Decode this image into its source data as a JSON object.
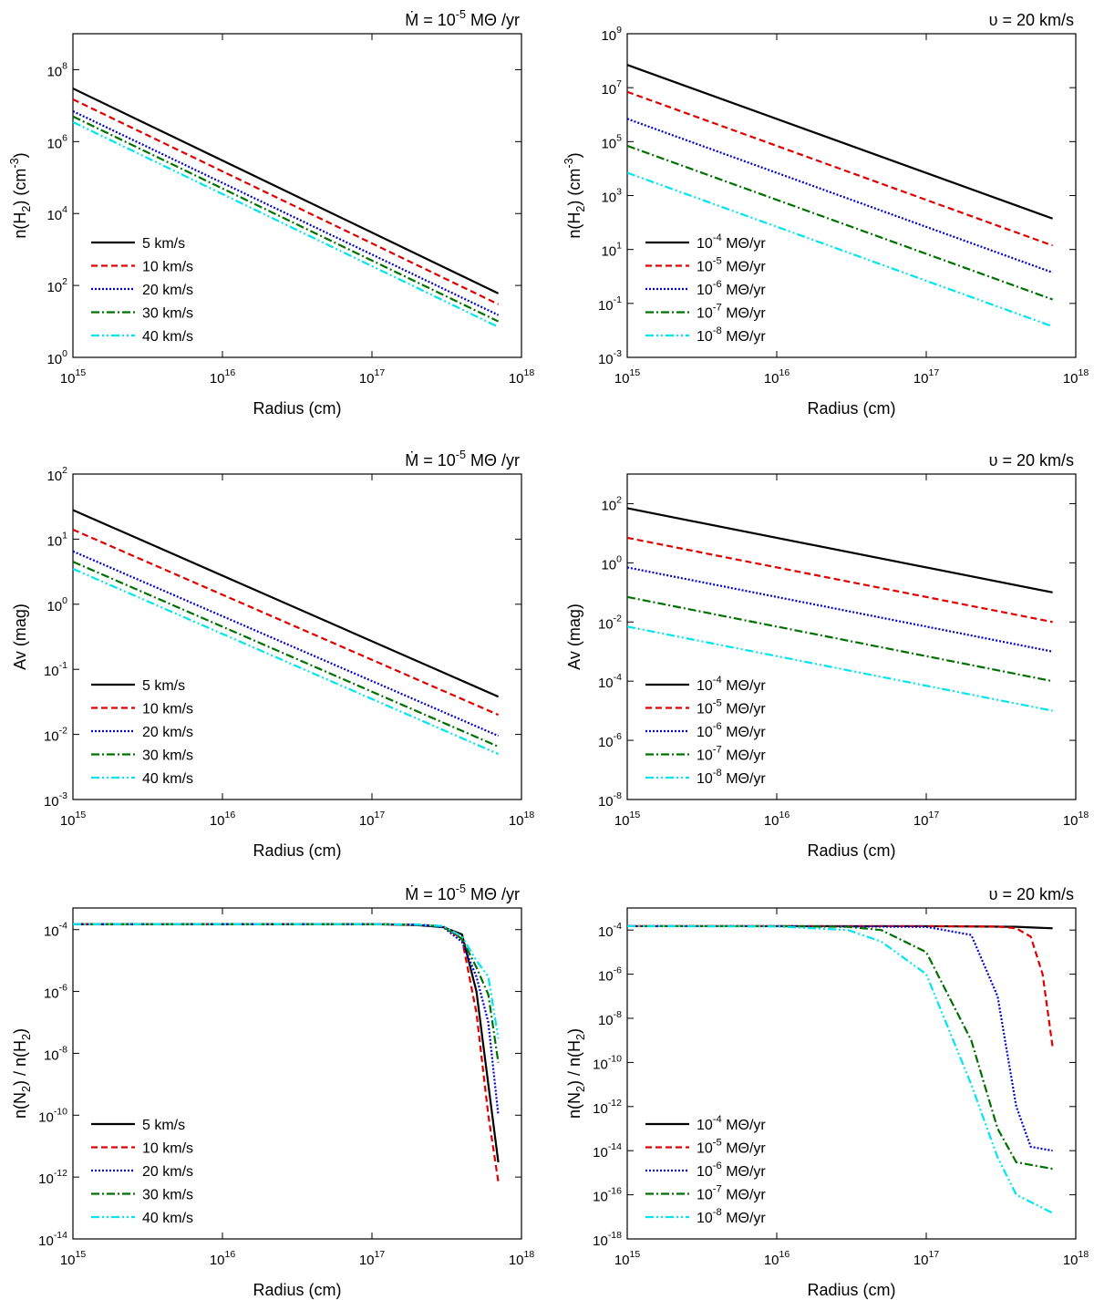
{
  "chart_data": [
    {
      "type": "line",
      "title": "Ṁ = 10^-5 MΘ /yr",
      "xlabel": "Radius (cm)",
      "ylabel": "n(H_2) (cm^-3)",
      "xscale": "log",
      "yscale": "log",
      "xlim": [
        1000000000000000.0,
        1e+18
      ],
      "ylim": [
        1,
        1000000000.0
      ],
      "xticks": [
        {
          "value": 1000000000000000.0,
          "label": "10^15"
        },
        {
          "value": 1e+16,
          "label": "10^16"
        },
        {
          "value": 1e+17,
          "label": "10^17"
        },
        {
          "value": 1e+18,
          "label": "10^18"
        }
      ],
      "yticks": [
        {
          "value": 1,
          "label": "10^0"
        },
        {
          "value": 100,
          "label": "10^2"
        },
        {
          "value": 10000,
          "label": "10^4"
        },
        {
          "value": 1000000,
          "label": "10^6"
        },
        {
          "value": 100000000,
          "label": "10^8"
        }
      ],
      "legend": "lower left",
      "series": [
        {
          "name": "5 km/s",
          "color": "#000000",
          "linestyle": "solid",
          "x": [
            1000000000000000.0,
            7e+17
          ],
          "values": [
            30000000.0,
            60
          ]
        },
        {
          "name": "10 km/s",
          "color": "#e00000",
          "linestyle": "dashed",
          "x": [
            1000000000000000.0,
            7e+17
          ],
          "values": [
            15000000.0,
            30
          ]
        },
        {
          "name": "20 km/s",
          "color": "#0000cc",
          "linestyle": "dotted",
          "x": [
            1000000000000000.0,
            7e+17
          ],
          "values": [
            7000000.0,
            15
          ]
        },
        {
          "name": "30 km/s",
          "color": "#007000",
          "linestyle": "dashdot",
          "x": [
            1000000000000000.0,
            7e+17
          ],
          "values": [
            5000000.0,
            10
          ]
        },
        {
          "name": "40 km/s",
          "color": "#00e5ee",
          "linestyle": "dashdotdot",
          "x": [
            1000000000000000.0,
            7e+17
          ],
          "values": [
            3500000.0,
            7
          ]
        }
      ]
    },
    {
      "type": "line",
      "title": "υ = 20 km/s",
      "xlabel": "Radius (cm)",
      "ylabel": "n(H_2) (cm^-3)",
      "xscale": "log",
      "yscale": "log",
      "xlim": [
        1000000000000000.0,
        1e+18
      ],
      "ylim": [
        0.001,
        1000000000.0
      ],
      "xticks": [
        {
          "value": 1000000000000000.0,
          "label": "10^15"
        },
        {
          "value": 1e+16,
          "label": "10^16"
        },
        {
          "value": 1e+17,
          "label": "10^17"
        },
        {
          "value": 1e+18,
          "label": "10^18"
        }
      ],
      "yticks": [
        {
          "value": 0.001,
          "label": "10^-3"
        },
        {
          "value": 0.1,
          "label": "10^-1"
        },
        {
          "value": 10,
          "label": "10^1"
        },
        {
          "value": 1000,
          "label": "10^3"
        },
        {
          "value": 100000,
          "label": "10^5"
        },
        {
          "value": 10000000,
          "label": "10^7"
        },
        {
          "value": 1000000000,
          "label": "10^9"
        }
      ],
      "legend": "lower left",
      "series": [
        {
          "name": "10^-4 MΘ/yr",
          "color": "#000000",
          "linestyle": "solid",
          "x": [
            1000000000000000.0,
            7e+17
          ],
          "values": [
            70000000.0,
            140
          ]
        },
        {
          "name": "10^-5 MΘ/yr",
          "color": "#e00000",
          "linestyle": "dashed",
          "x": [
            1000000000000000.0,
            7e+17
          ],
          "values": [
            7000000.0,
            14
          ]
        },
        {
          "name": "10^-6 MΘ/yr",
          "color": "#0000cc",
          "linestyle": "dotted",
          "x": [
            1000000000000000.0,
            7e+17
          ],
          "values": [
            700000.0,
            1.4
          ]
        },
        {
          "name": "10^-7 MΘ/yr",
          "color": "#007000",
          "linestyle": "dashdot",
          "x": [
            1000000000000000.0,
            7e+17
          ],
          "values": [
            70000.0,
            0.14
          ]
        },
        {
          "name": "10^-8 MΘ/yr",
          "color": "#00e5ee",
          "linestyle": "dashdotdot",
          "x": [
            1000000000000000.0,
            7e+17
          ],
          "values": [
            7000.0,
            0.014
          ]
        }
      ]
    },
    {
      "type": "line",
      "title": "Ṁ = 10^-5 MΘ /yr",
      "xlabel": "Radius (cm)",
      "ylabel": "Av (mag)",
      "xscale": "log",
      "yscale": "log",
      "xlim": [
        1000000000000000.0,
        1e+18
      ],
      "ylim": [
        0.001,
        100
      ],
      "xticks": [
        {
          "value": 1000000000000000.0,
          "label": "10^15"
        },
        {
          "value": 1e+16,
          "label": "10^16"
        },
        {
          "value": 1e+17,
          "label": "10^17"
        },
        {
          "value": 1e+18,
          "label": "10^18"
        }
      ],
      "yticks": [
        {
          "value": 0.001,
          "label": "10^-3"
        },
        {
          "value": 0.01,
          "label": "10^-2"
        },
        {
          "value": 0.1,
          "label": "10^-1"
        },
        {
          "value": 1,
          "label": "10^0"
        },
        {
          "value": 10,
          "label": "10^1"
        },
        {
          "value": 100,
          "label": "10^2"
        }
      ],
      "legend": "lower left",
      "series": [
        {
          "name": "5 km/s",
          "color": "#000000",
          "linestyle": "solid",
          "x": [
            1000000000000000.0,
            7e+17
          ],
          "values": [
            28,
            0.038
          ]
        },
        {
          "name": "10 km/s",
          "color": "#e00000",
          "linestyle": "dashed",
          "x": [
            1000000000000000.0,
            7e+17
          ],
          "values": [
            14,
            0.02
          ]
        },
        {
          "name": "20 km/s",
          "color": "#0000cc",
          "linestyle": "dotted",
          "x": [
            1000000000000000.0,
            7e+17
          ],
          "values": [
            6.5,
            0.0095
          ]
        },
        {
          "name": "30 km/s",
          "color": "#007000",
          "linestyle": "dashdot",
          "x": [
            1000000000000000.0,
            7e+17
          ],
          "values": [
            4.5,
            0.0065
          ]
        },
        {
          "name": "40 km/s",
          "color": "#00e5ee",
          "linestyle": "dashdotdot",
          "x": [
            1000000000000000.0,
            7e+17
          ],
          "values": [
            3.5,
            0.005
          ]
        }
      ]
    },
    {
      "type": "line",
      "title": "υ = 20 km/s",
      "xlabel": "Radius (cm)",
      "ylabel": "Av (mag)",
      "xscale": "log",
      "yscale": "log",
      "xlim": [
        1000000000000000.0,
        1e+18
      ],
      "ylim": [
        1e-08,
        1000
      ],
      "xticks": [
        {
          "value": 1000000000000000.0,
          "label": "10^15"
        },
        {
          "value": 1e+16,
          "label": "10^16"
        },
        {
          "value": 1e+17,
          "label": "10^17"
        },
        {
          "value": 1e+18,
          "label": "10^18"
        }
      ],
      "yticks": [
        {
          "value": 1e-08,
          "label": "10^-8"
        },
        {
          "value": 1e-06,
          "label": "10^-6"
        },
        {
          "value": 0.0001,
          "label": "10^-4"
        },
        {
          "value": 0.01,
          "label": "10^-2"
        },
        {
          "value": 1,
          "label": "10^0"
        },
        {
          "value": 100,
          "label": "10^2"
        }
      ],
      "legend": "lower left",
      "series": [
        {
          "name": "10^-4 MΘ/yr",
          "color": "#000000",
          "linestyle": "solid",
          "x": [
            1000000000000000.0,
            7e+17
          ],
          "values": [
            70,
            0.1
          ]
        },
        {
          "name": "10^-5 MΘ/yr",
          "color": "#e00000",
          "linestyle": "dashed",
          "x": [
            1000000000000000.0,
            7e+17
          ],
          "values": [
            7,
            0.01
          ]
        },
        {
          "name": "10^-6 MΘ/yr",
          "color": "#0000cc",
          "linestyle": "dotted",
          "x": [
            1000000000000000.0,
            7e+17
          ],
          "values": [
            0.7,
            0.001
          ]
        },
        {
          "name": "10^-7 MΘ/yr",
          "color": "#007000",
          "linestyle": "dashdot",
          "x": [
            1000000000000000.0,
            7e+17
          ],
          "values": [
            0.07,
            0.0001
          ]
        },
        {
          "name": "10^-8 MΘ/yr",
          "color": "#00e5ee",
          "linestyle": "dashdotdot",
          "x": [
            1000000000000000.0,
            7e+17
          ],
          "values": [
            0.007,
            1e-05
          ]
        }
      ]
    },
    {
      "type": "line",
      "title": "Ṁ = 10^-5 MΘ /yr",
      "xlabel": "Radius (cm)",
      "ylabel": "n(N_2) / n(H_2)",
      "xscale": "log",
      "yscale": "log",
      "xlim": [
        1000000000000000.0,
        1e+18
      ],
      "ylim": [
        1e-14,
        0.0005
      ],
      "xticks": [
        {
          "value": 1000000000000000.0,
          "label": "10^15"
        },
        {
          "value": 1e+16,
          "label": "10^16"
        },
        {
          "value": 1e+17,
          "label": "10^17"
        },
        {
          "value": 1e+18,
          "label": "10^18"
        }
      ],
      "yticks": [
        {
          "value": 1e-14,
          "label": "10^-14"
        },
        {
          "value": 1e-12,
          "label": "10^-12"
        },
        {
          "value": 1e-10,
          "label": "10^-10"
        },
        {
          "value": 1e-08,
          "label": "10^-8"
        },
        {
          "value": 1e-06,
          "label": "10^-6"
        },
        {
          "value": 0.0001,
          "label": "10^-4"
        }
      ],
      "legend": "lower left",
      "series": [
        {
          "name": "5 km/s",
          "color": "#000000",
          "linestyle": "solid",
          "x": [
            1000000000000000.0,
            1e+16,
            1e+17,
            2e+17,
            3e+17,
            4e+17,
            5e+17,
            6e+17,
            7e+17
          ],
          "values": [
            0.00015,
            0.00015,
            0.00015,
            0.00014,
            0.00012,
            7e-05,
            1e-06,
            1e-09,
            3e-12
          ]
        },
        {
          "name": "10 km/s",
          "color": "#e00000",
          "linestyle": "dashed",
          "x": [
            1000000000000000.0,
            1e+16,
            1e+17,
            2e+17,
            3e+17,
            4e+17,
            5e+17,
            6e+17,
            7e+17
          ],
          "values": [
            0.00015,
            0.00015,
            0.00015,
            0.000145,
            0.00013,
            5e-05,
            2e-07,
            1e-10,
            7e-13
          ]
        },
        {
          "name": "20 km/s",
          "color": "#0000cc",
          "linestyle": "dotted",
          "x": [
            1000000000000000.0,
            1e+16,
            1e+17,
            2e+17,
            3e+17,
            4e+17,
            5e+17,
            6e+17,
            7e+17
          ],
          "values": [
            0.00015,
            0.00015,
            0.00015,
            0.000145,
            0.00012,
            4e-05,
            3e-06,
            1e-07,
            1e-10
          ]
        },
        {
          "name": "30 km/s",
          "color": "#007000",
          "linestyle": "dashdot",
          "x": [
            1000000000000000.0,
            1e+16,
            1e+17,
            2e+17,
            3e+17,
            4e+17,
            5e+17,
            6e+17,
            7e+17
          ],
          "values": [
            0.00015,
            0.00015,
            0.00015,
            0.000145,
            0.000125,
            5e-05,
            6e-06,
            8e-07,
            5e-09
          ]
        },
        {
          "name": "40 km/s",
          "color": "#00e5ee",
          "linestyle": "dashdotdot",
          "x": [
            1000000000000000.0,
            1e+16,
            1e+17,
            2e+17,
            3e+17,
            4e+17,
            5e+17,
            6e+17,
            7e+17
          ],
          "values": [
            0.00015,
            0.00015,
            0.00015,
            0.000145,
            0.00013,
            6e-05,
            1e-05,
            3e-06,
            3e-08
          ]
        }
      ]
    },
    {
      "type": "line",
      "title": "υ = 20 km/s",
      "xlabel": "Radius (cm)",
      "ylabel": "n(N_2) / n(H_2)",
      "xscale": "log",
      "yscale": "log",
      "xlim": [
        1000000000000000.0,
        1e+18
      ],
      "ylim": [
        1e-18,
        0.001
      ],
      "xticks": [
        {
          "value": 1000000000000000.0,
          "label": "10^15"
        },
        {
          "value": 1e+16,
          "label": "10^16"
        },
        {
          "value": 1e+17,
          "label": "10^17"
        },
        {
          "value": 1e+18,
          "label": "10^18"
        }
      ],
      "yticks": [
        {
          "value": 1e-18,
          "label": "10^-18"
        },
        {
          "value": 1e-16,
          "label": "10^-16"
        },
        {
          "value": 1e-14,
          "label": "10^-14"
        },
        {
          "value": 1e-12,
          "label": "10^-12"
        },
        {
          "value": 1e-10,
          "label": "10^-10"
        },
        {
          "value": 1e-08,
          "label": "10^-8"
        },
        {
          "value": 1e-06,
          "label": "10^-6"
        },
        {
          "value": 0.0001,
          "label": "10^-4"
        }
      ],
      "legend": "lower left",
      "series": [
        {
          "name": "10^-4 MΘ/yr",
          "color": "#000000",
          "linestyle": "solid",
          "x": [
            1000000000000000.0,
            1e+17,
            4e+17,
            7e+17
          ],
          "values": [
            0.00015,
            0.00015,
            0.00014,
            0.00012
          ]
        },
        {
          "name": "10^-5 MΘ/yr",
          "color": "#e00000",
          "linestyle": "dashed",
          "x": [
            1000000000000000.0,
            1e+17,
            3e+17,
            4e+17,
            5e+17,
            6e+17,
            7e+17
          ],
          "values": [
            0.00015,
            0.00015,
            0.000145,
            0.00012,
            5e-05,
            1e-06,
            5e-10
          ]
        },
        {
          "name": "10^-6 MΘ/yr",
          "color": "#0000cc",
          "linestyle": "dotted",
          "x": [
            1000000000000000.0,
            1e+16,
            1e+17,
            2e+17,
            3e+17,
            4e+17,
            5e+17,
            7e+17
          ],
          "values": [
            0.00015,
            0.00015,
            0.00014,
            6e-05,
            1e-07,
            1e-12,
            1.5e-14,
            1e-14
          ]
        },
        {
          "name": "10^-7 MΘ/yr",
          "color": "#007000",
          "linestyle": "dashdot",
          "x": [
            1000000000000000.0,
            1e+16,
            3e+16,
            5e+16,
            1e+17,
            2e+17,
            3e+17,
            4e+17,
            7e+17
          ],
          "values": [
            0.00015,
            0.00015,
            0.00014,
            0.0001,
            1e-05,
            1e-09,
            1e-13,
            3e-15,
            1.5e-15
          ]
        },
        {
          "name": "10^-8 MΘ/yr",
          "color": "#00e5ee",
          "linestyle": "dashdotdot",
          "x": [
            1000000000000000.0,
            1e+16,
            3e+16,
            5e+16,
            1e+17,
            2e+17,
            3e+17,
            4e+17,
            7e+17
          ],
          "values": [
            0.00015,
            0.000145,
            0.0001,
            3e-05,
            1e-06,
            1e-11,
            5e-15,
            1e-16,
            1.5e-17
          ]
        }
      ]
    }
  ]
}
